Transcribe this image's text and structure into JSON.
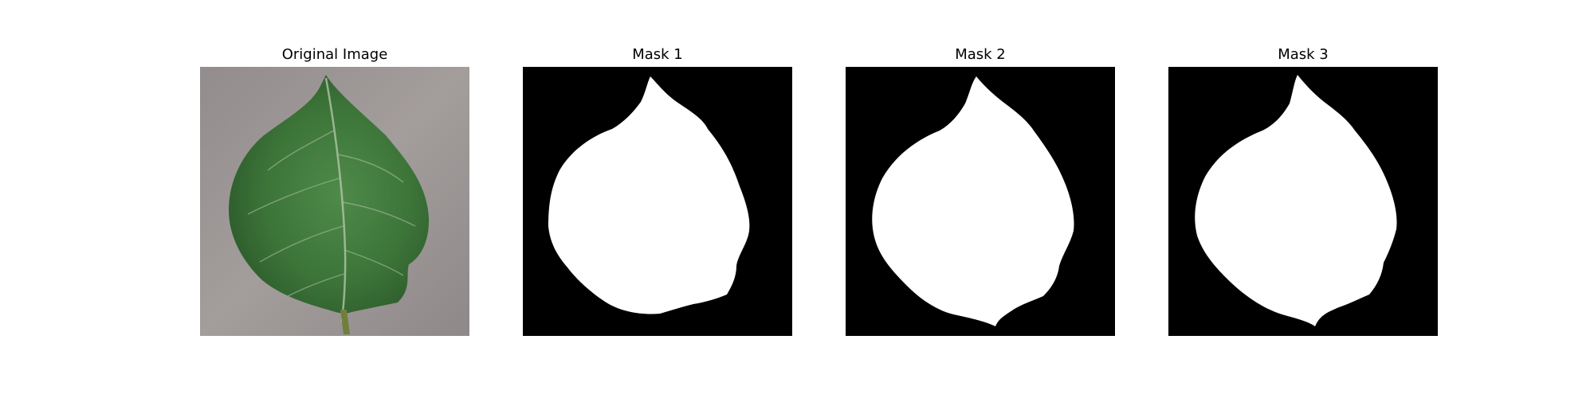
{
  "figure": {
    "panels": [
      {
        "title": "Original Image",
        "image": "leaf-photo"
      },
      {
        "title": "Mask 1",
        "image": "binary-leaf-mask"
      },
      {
        "title": "Mask 2",
        "image": "binary-leaf-mask"
      },
      {
        "title": "Mask 3",
        "image": "binary-leaf-mask"
      }
    ],
    "colors": {
      "background": "#ffffff",
      "mask_foreground": "#ffffff",
      "mask_background": "#000000",
      "leaf": "#3f7a3c",
      "surface": "#9a9493"
    }
  }
}
